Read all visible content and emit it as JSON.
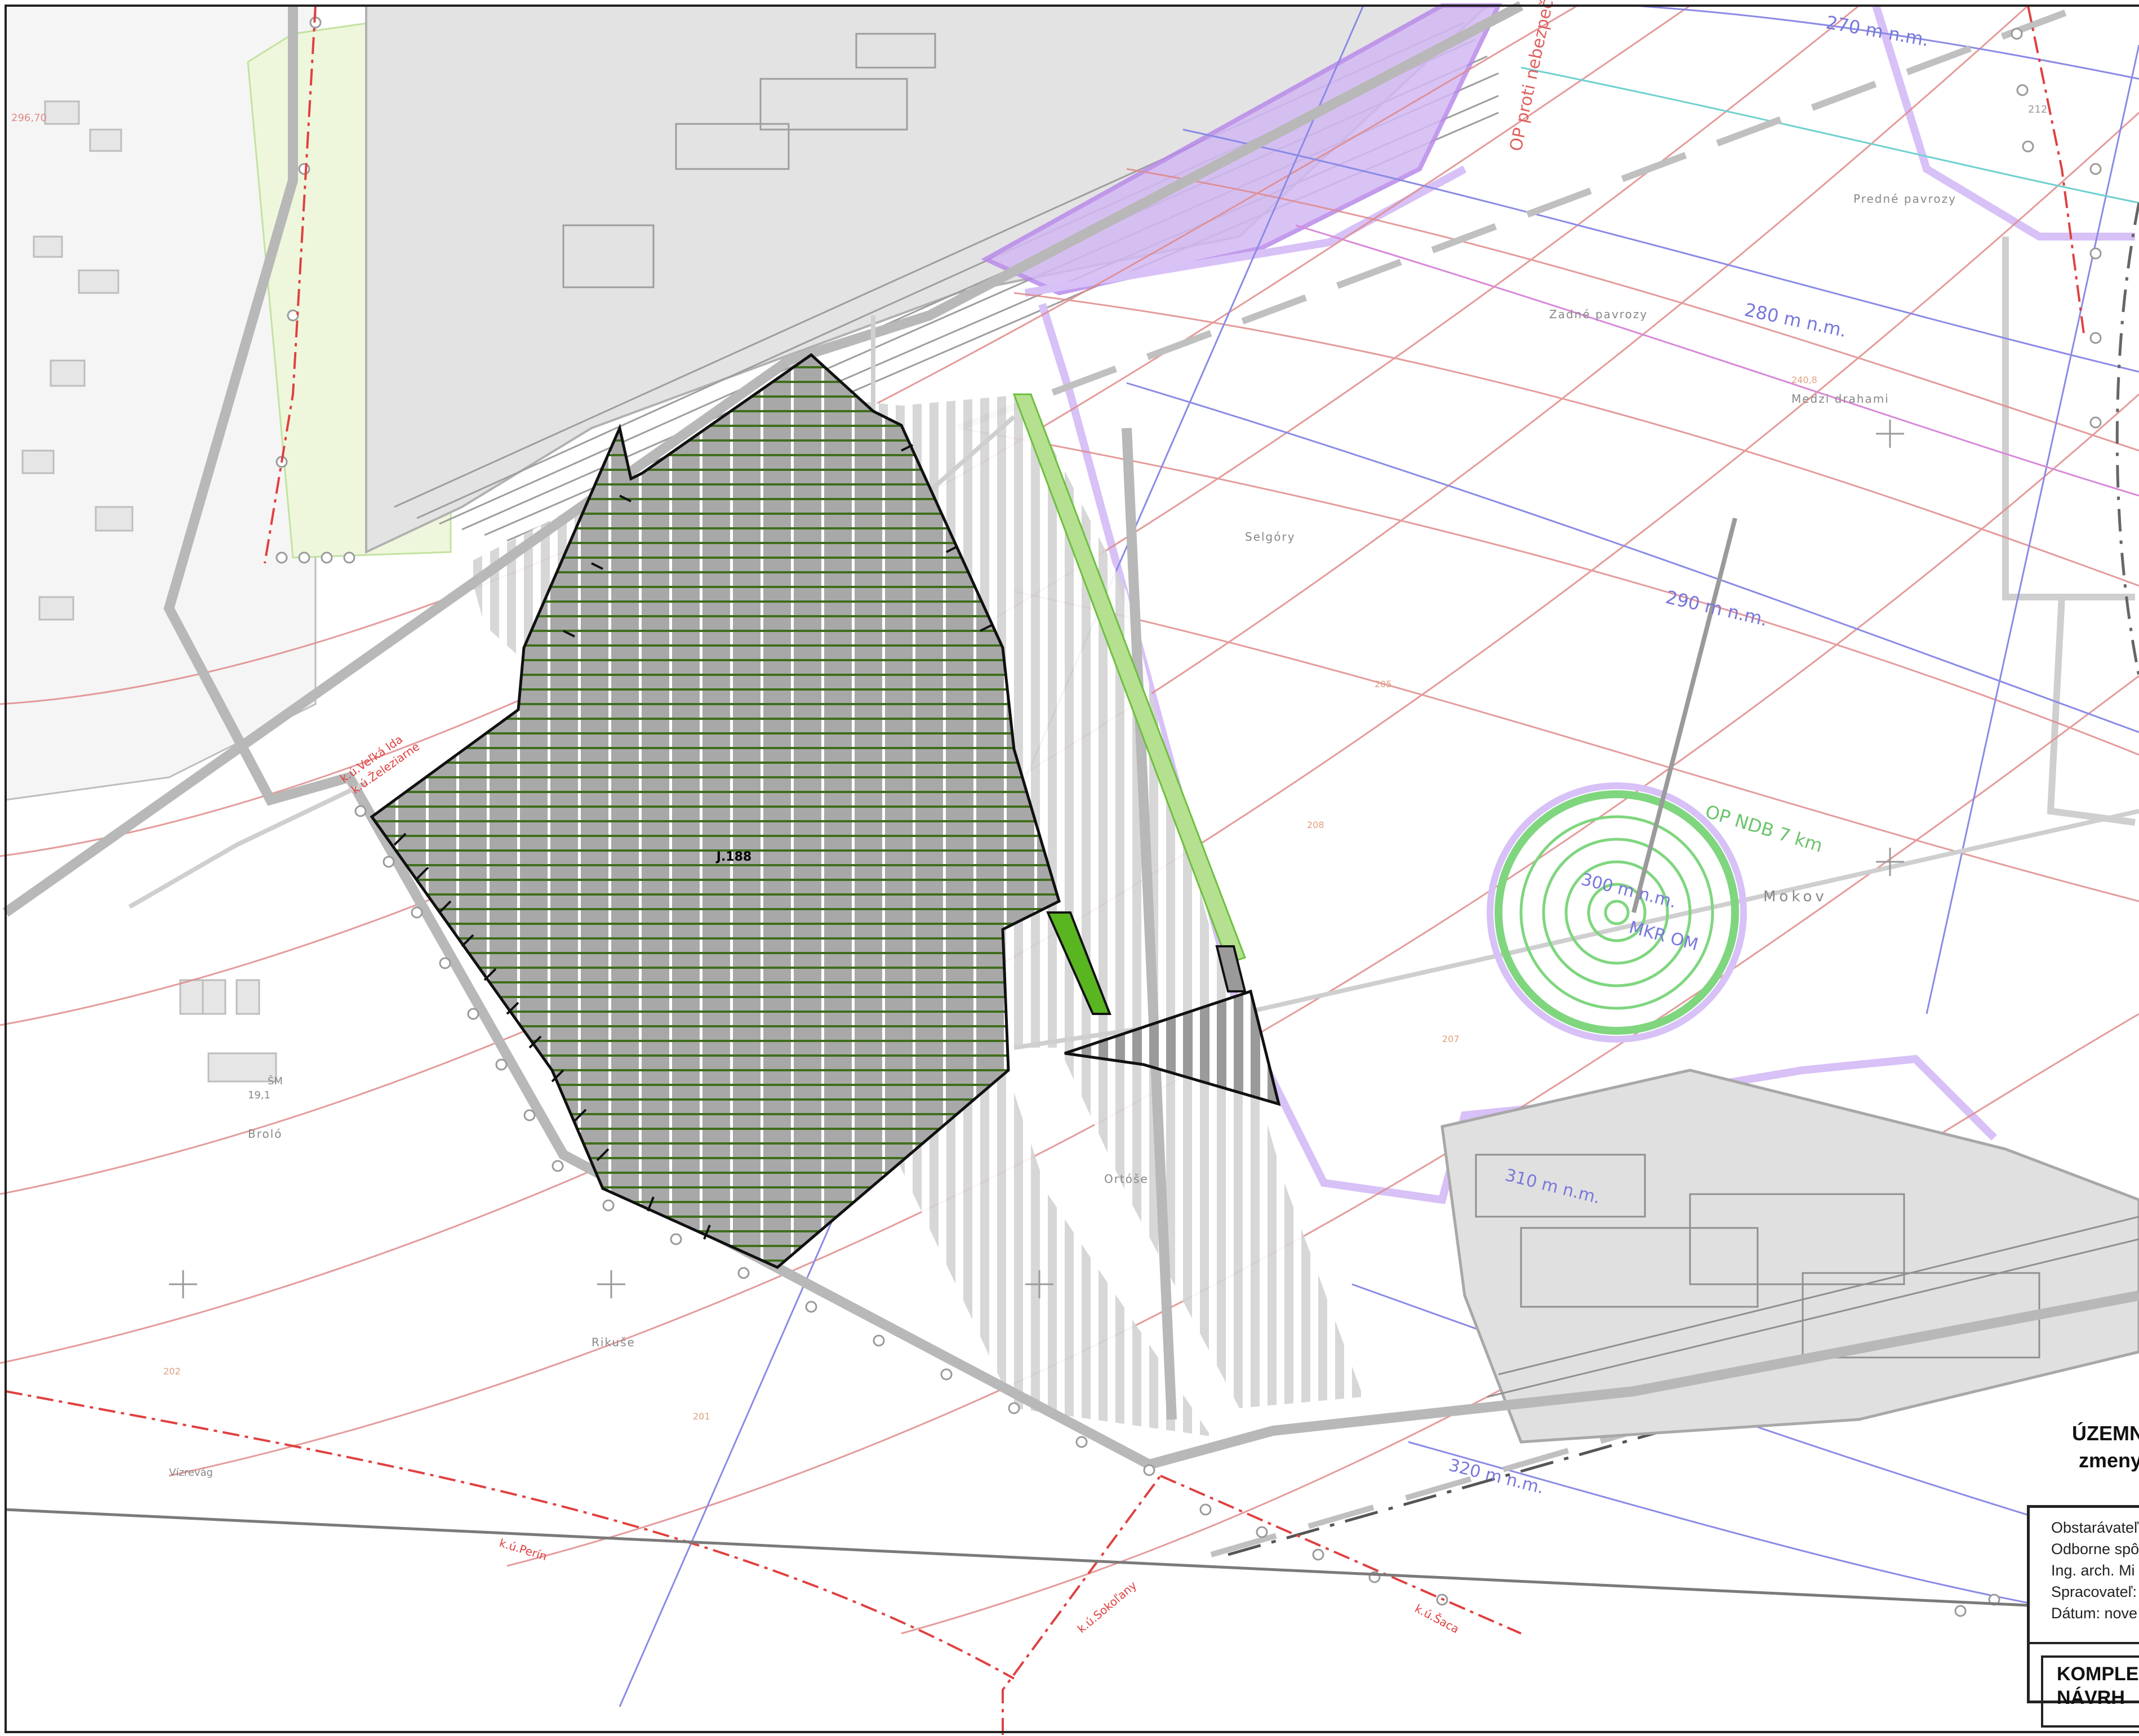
{
  "map": {
    "parcel_label": "J.188",
    "elevation_labels": [
      "270 m n.m.",
      "280 m n.m.",
      "290 m n.m.",
      "300 m n.m.",
      "310 m n.m.",
      "320 m n.m."
    ],
    "protection_zone_label": "OP NDB 7 km",
    "beacon_label": "MKR OM",
    "op_label": "OP proti nebezpeč.",
    "place_names": [
      "Predné pavrozy",
      "Zadné pavrozy",
      "Medzi drahami",
      "Selgóry",
      "Mokov",
      "Ortóše",
      "Rikuše",
      "Broló",
      "Vízrevág"
    ],
    "cadastral_labels": [
      "k.ú.Veľká Ida",
      "k.ú.Železiarne",
      "k.ú.Perín",
      "k.ú.Šaca",
      "k.ú.Sokoľany"
    ],
    "spot_heights": [
      "296,70",
      "212",
      "240,8",
      "202",
      "207",
      "208",
      "205",
      "201",
      "19,1",
      "ŠM"
    ]
  },
  "title_block": {
    "doc_title_1": "ÚZEMN",
    "doc_title_2": "zmeny",
    "line1": "Obstarávateľ",
    "line2": "Odborne spô",
    "line3": "Ing. arch. Mi",
    "line4": "Spracovateľ:",
    "line5": "Dátum: nove",
    "section_1": "KOMPLEX",
    "section_2": "NÁVRH"
  },
  "colors": {
    "parcel_fill": "#a8a8a8",
    "parcel_stripe": "#3f6e1c",
    "contour": "#e08a8a",
    "elevation_line": "#8080e0",
    "protection_zone": "#7fd67f",
    "industrial_violet": "#c9a8f0",
    "urban_gray": "#dcdcdc",
    "cadastral_red": "#e03030"
  }
}
